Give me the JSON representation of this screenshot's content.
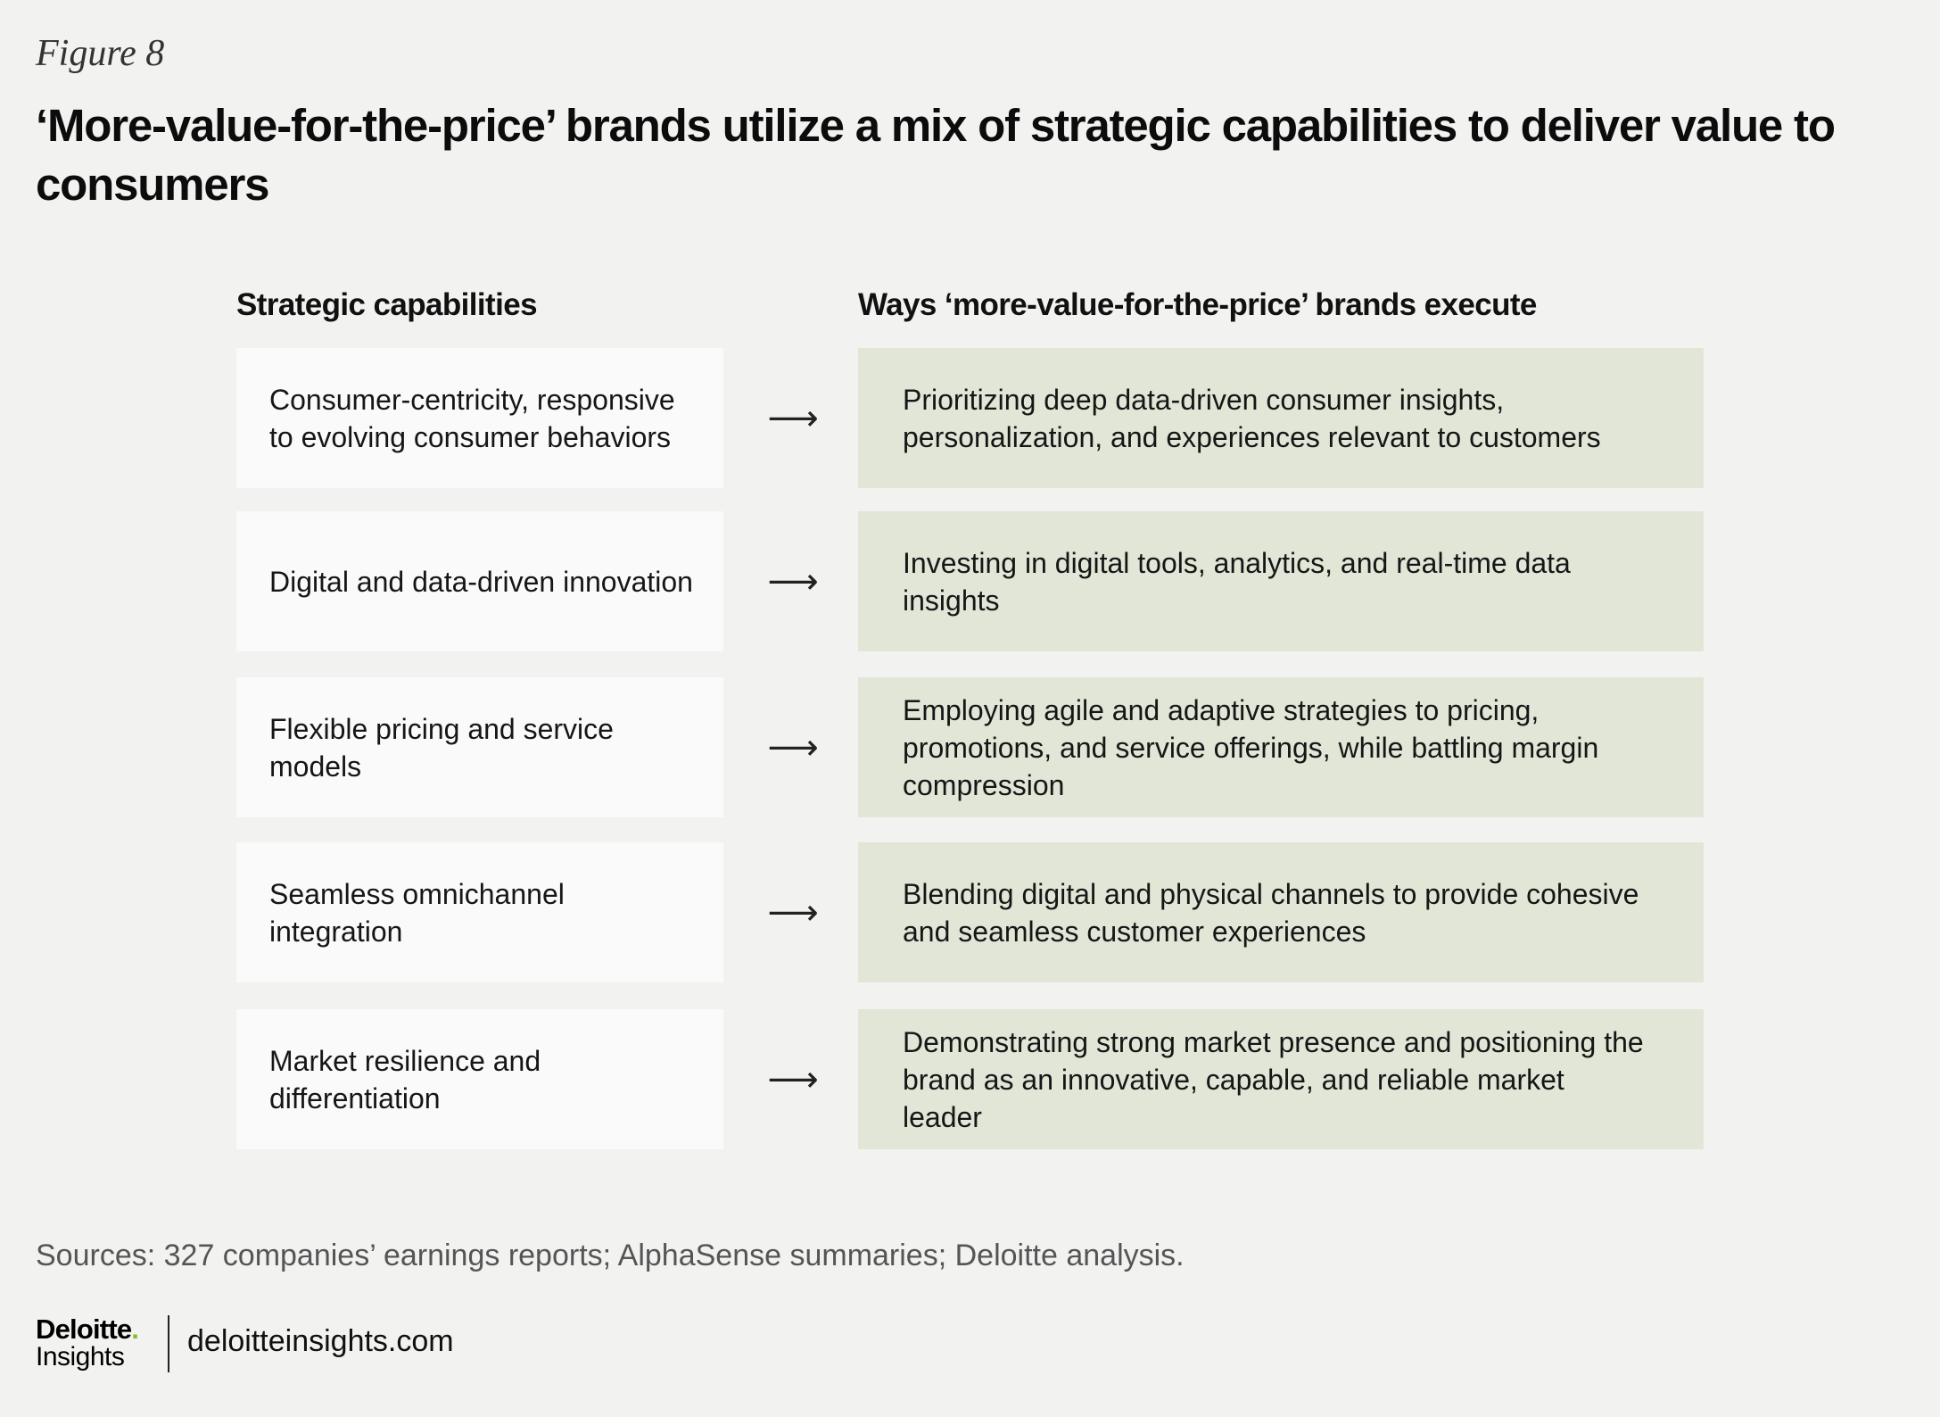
{
  "figure_label": "Figure 8",
  "title": "‘More-value-for-the-price’ brands utilize a mix of strategic capabilities to deliver value to consumers",
  "columns": {
    "left": "Strategic capabilities",
    "right": "Ways ‘more-value-for-the-price’ brands execute"
  },
  "arrow_glyph": "⟶",
  "rows": [
    {
      "capability": "Consumer-centricity, responsive to evolving consumer behaviors",
      "execution": "Prioritizing deep data-driven consumer insights, personalization, and experiences relevant to customers"
    },
    {
      "capability": "Digital and data-driven innovation",
      "execution": "Investing in digital tools, analytics, and real-time data insights"
    },
    {
      "capability": "Flexible pricing and service models",
      "execution": "Employing agile and adaptive strategies to pricing, promotions, and service offerings, while battling margin compression"
    },
    {
      "capability": "Seamless omnichannel integration",
      "execution": "Blending digital and physical channels to provide cohesive and seamless customer experiences"
    },
    {
      "capability": "Market resilience and differentiation",
      "execution": "Demonstrating strong market presence and positioning the brand as an innovative, capable, and reliable market leader"
    }
  ],
  "sources": "Sources: 327 companies’ earnings reports; AlphaSense summaries; Deloitte analysis.",
  "footer": {
    "logo_name": "Deloitte",
    "logo_dot": ".",
    "logo_sub": "Insights",
    "website": "deloitteinsights.com"
  },
  "colors": {
    "background": "#f2f3f1",
    "capability_box": "#f9faf9",
    "execution_box": "#e1e6d7",
    "logo_dot": "#86bc25"
  }
}
